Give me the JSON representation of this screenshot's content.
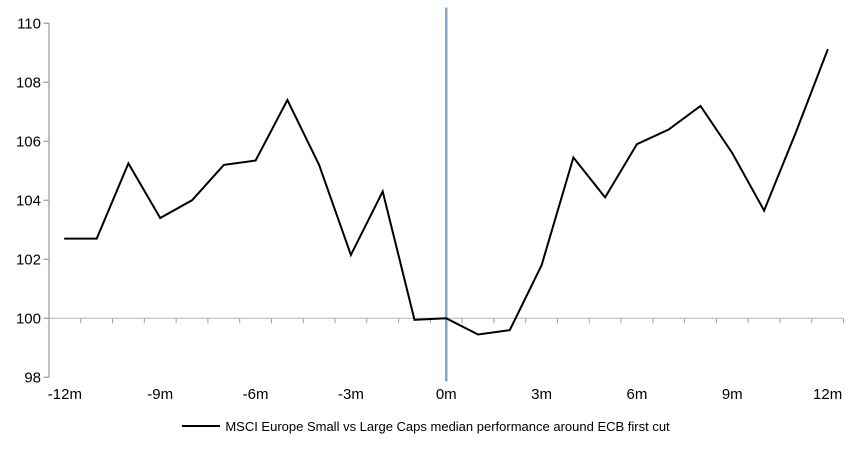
{
  "chart_data": {
    "type": "line",
    "title": "",
    "xlabel": "",
    "ylabel": "",
    "x_months": [
      -12,
      -11,
      -10,
      -9,
      -8,
      -7,
      -6,
      -5,
      -4,
      -3,
      -2,
      -1,
      0,
      1,
      2,
      3,
      4,
      5,
      6,
      7,
      8,
      9,
      10,
      11,
      12
    ],
    "series": [
      {
        "name": "MSCI Europe Small vs Large Caps median performance around ECB first cut",
        "color": "#000000",
        "values": [
          102.7,
          102.7,
          105.25,
          103.4,
          104.0,
          105.2,
          105.35,
          107.4,
          105.2,
          102.15,
          104.3,
          99.95,
          100.0,
          99.45,
          99.6,
          101.8,
          105.45,
          104.1,
          105.9,
          106.4,
          107.2,
          105.6,
          103.65,
          106.3,
          109.1
        ]
      }
    ],
    "ylim": [
      98,
      110
    ],
    "y_ticks": [
      98,
      100,
      102,
      104,
      106,
      108,
      110
    ],
    "y_tick_labels": [
      "98",
      "100",
      "102",
      "104",
      "106",
      "108",
      "110"
    ],
    "x_tick_months": [
      -12,
      -9,
      -6,
      -3,
      0,
      3,
      6,
      9,
      12
    ],
    "x_tick_labels": [
      "-12m",
      "-9m",
      "-6m",
      "-3m",
      "0m",
      "3m",
      "6m",
      "9m",
      "12m"
    ],
    "baseline_value": 100,
    "event_line": {
      "at_month": 0,
      "color": "#7FA7D3"
    },
    "grid": "baseline-only",
    "legend_position": "bottom-center",
    "colors": {
      "line": "#000000",
      "event_line": "#7FA7D3",
      "axis": "#A0A0A0",
      "baseline_grid": "#C8C8C8",
      "text": "#000000",
      "background": "#FFFFFF"
    }
  }
}
